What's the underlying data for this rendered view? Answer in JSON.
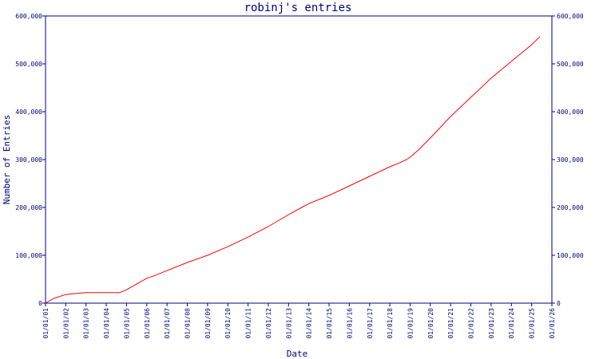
{
  "chart_data": {
    "type": "line",
    "title": "robinj's entries",
    "xlabel": "Date",
    "ylabel": "Number of Entries",
    "ylim": [
      0,
      600000
    ],
    "y_ticks": [
      0,
      100000,
      200000,
      300000,
      400000,
      500000,
      600000
    ],
    "y_tick_labels": [
      "0",
      "100,000",
      "200,000",
      "300,000",
      "400,000",
      "500,000",
      "600,000"
    ],
    "x_range": [
      "01/01/01",
      "01/01/26"
    ],
    "x_tick_labels": [
      "01/01/01",
      "01/01/02",
      "01/01/03",
      "01/01/04",
      "01/01/05",
      "01/01/06",
      "01/01/07",
      "01/01/08",
      "01/01/09",
      "01/01/10",
      "01/01/11",
      "01/01/12",
      "01/01/13",
      "01/01/14",
      "01/01/15",
      "01/01/16",
      "01/01/17",
      "01/01/18",
      "01/01/19",
      "01/01/20",
      "01/01/21",
      "01/01/22",
      "01/01/23",
      "01/01/24",
      "01/01/25",
      "01/01/26"
    ],
    "grid": false,
    "colors": {
      "axis": "#00007f",
      "line": "#ff0000"
    },
    "series": [
      {
        "x": [
          "2001-01-01",
          "2001-06-01",
          "2002-01-01",
          "2002-06-01",
          "2003-01-01",
          "2004-01-01",
          "2004-09-01",
          "2005-01-01",
          "2005-06-01",
          "2006-01-01",
          "2006-06-01",
          "2007-01-01",
          "2008-01-01",
          "2009-01-01",
          "2010-01-01",
          "2011-01-01",
          "2012-01-01",
          "2013-01-01",
          "2014-01-01",
          "2015-01-01",
          "2016-01-01",
          "2017-01-01",
          "2018-01-01",
          "2018-06-01",
          "2018-11-01",
          "2019-01-01",
          "2019-06-01",
          "2020-01-01",
          "2021-01-01",
          "2022-01-01",
          "2023-01-01",
          "2024-01-01",
          "2025-01-01",
          "2025-06-01"
        ],
        "values": [
          0,
          10000,
          18000,
          20000,
          22000,
          22000,
          22000,
          28000,
          38000,
          52000,
          58000,
          68000,
          85000,
          100000,
          118000,
          138000,
          160000,
          185000,
          208000,
          225000,
          245000,
          265000,
          285000,
          292000,
          300000,
          305000,
          320000,
          345000,
          390000,
          430000,
          470000,
          505000,
          540000,
          557000
        ]
      }
    ]
  }
}
